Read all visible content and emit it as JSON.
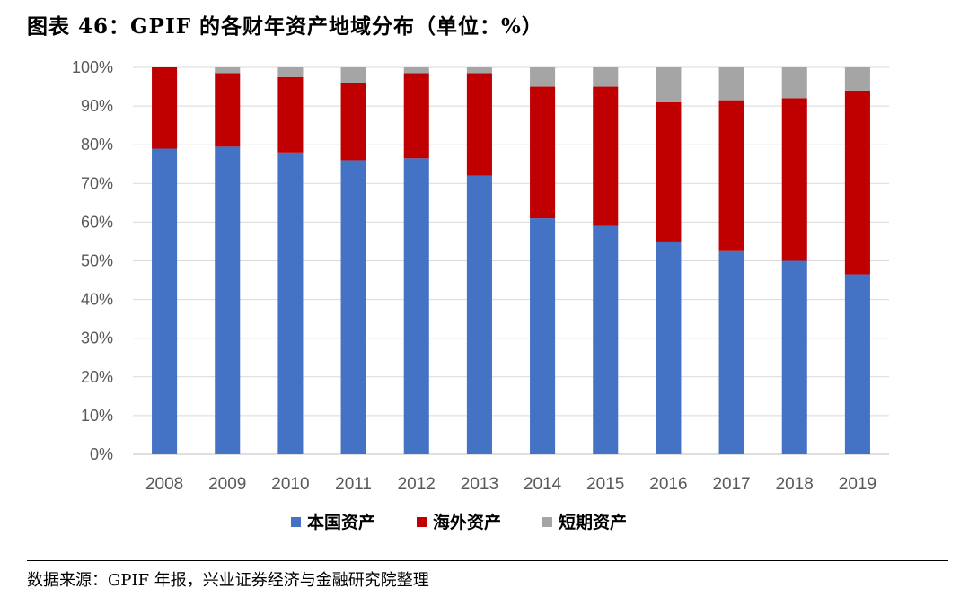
{
  "header": {
    "title": "图表 46：GPIF 的各财年资产地域分布（单位：%）"
  },
  "footer": {
    "source": "数据来源：GPIF 年报，兴业证券经济与金融研究院整理"
  },
  "colors": {
    "domestic": "#4472C4",
    "overseas": "#C00000",
    "short_term": "#A5A5A5",
    "grid": "#D9D9D9",
    "axis_text": "#595959"
  },
  "chart_data": {
    "type": "bar",
    "stacked": true,
    "categories": [
      "2008",
      "2009",
      "2010",
      "2011",
      "2012",
      "2013",
      "2014",
      "2015",
      "2016",
      "2017",
      "2018",
      "2019"
    ],
    "series": [
      {
        "name": "本国资产",
        "color": "#4472C4",
        "values": [
          79,
          79.5,
          78,
          76,
          76.5,
          72,
          61,
          59,
          55,
          52.5,
          50,
          46.5
        ]
      },
      {
        "name": "海外资产",
        "color": "#C00000",
        "values": [
          21,
          19,
          19.5,
          20,
          22,
          26.5,
          34,
          36,
          36,
          39,
          42,
          47.5
        ]
      },
      {
        "name": "短期资产",
        "color": "#A5A5A5",
        "values": [
          0,
          1.5,
          2.5,
          4,
          1.5,
          1.5,
          5,
          5,
          9,
          8.5,
          8,
          6
        ]
      }
    ],
    "ylim": [
      0,
      100
    ],
    "yticks": [
      "0%",
      "10%",
      "20%",
      "30%",
      "40%",
      "50%",
      "60%",
      "70%",
      "80%",
      "90%",
      "100%"
    ],
    "grid": true,
    "legend_position": "bottom"
  }
}
